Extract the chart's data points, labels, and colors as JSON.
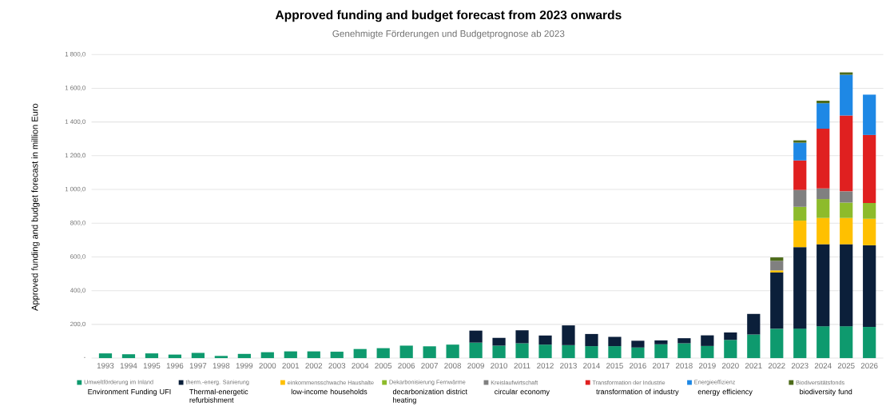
{
  "chart_data": {
    "type": "bar",
    "stacked": true,
    "title": "Approved funding and budget forecast from 2023 onwards",
    "subtitle": "Genehmigte Förderungen und Budgetprognose ab 2023",
    "ylabel": "Approved funding and budget forecast in million Euro",
    "categories": [
      "1993",
      "1994",
      "1995",
      "1996",
      "1997",
      "1998",
      "1999",
      "2000",
      "2001",
      "2002",
      "2003",
      "2004",
      "2005",
      "2006",
      "2007",
      "2008",
      "2009",
      "2010",
      "2011",
      "2012",
      "2013",
      "2014",
      "2015",
      "2016",
      "2017",
      "2018",
      "2019",
      "2020",
      "2021",
      "2022",
      "2023",
      "2024",
      "2025",
      "2026"
    ],
    "series": [
      {
        "name": "Umweltförderung im Inland",
        "color": "#0e9a6e",
        "values": [
          28,
          23,
          28,
          21,
          31,
          13,
          25,
          35,
          40,
          40,
          38,
          54,
          59,
          74,
          70,
          80,
          92,
          74,
          88,
          80,
          77,
          71,
          71,
          63,
          82,
          88,
          72,
          108,
          140,
          174,
          175,
          189,
          189,
          185
        ]
      },
      {
        "name": "therm.-energ. Sanierung",
        "color": "#0b1f3a",
        "values": [
          null,
          null,
          null,
          null,
          null,
          null,
          null,
          null,
          null,
          null,
          null,
          null,
          null,
          null,
          null,
          null,
          71,
          46,
          77,
          54,
          117,
          72,
          55,
          40,
          23,
          30,
          63,
          44,
          122,
          334,
          483,
          486,
          486,
          484
        ]
      },
      {
        "name": "einkommensschwache Haushalte",
        "color": "#ffc000",
        "values": [
          null,
          null,
          null,
          null,
          null,
          null,
          null,
          null,
          null,
          null,
          null,
          null,
          null,
          null,
          null,
          null,
          null,
          null,
          null,
          null,
          null,
          null,
          null,
          null,
          null,
          null,
          null,
          null,
          null,
          12,
          157,
          156,
          156,
          157
        ]
      },
      {
        "name": "Dekarbonisierung Fernwärme",
        "color": "#8dbb2b",
        "values": [
          null,
          null,
          null,
          null,
          null,
          null,
          null,
          null,
          null,
          null,
          null,
          null,
          null,
          null,
          null,
          null,
          null,
          null,
          null,
          null,
          null,
          null,
          null,
          null,
          null,
          null,
          null,
          null,
          null,
          null,
          82,
          112,
          91,
          94
        ]
      },
      {
        "name": "Kreislaufwirtschaft",
        "color": "#808080",
        "values": [
          null,
          null,
          null,
          null,
          null,
          null,
          null,
          null,
          null,
          null,
          null,
          null,
          null,
          null,
          null,
          null,
          null,
          null,
          null,
          null,
          null,
          null,
          null,
          null,
          null,
          null,
          null,
          null,
          null,
          57,
          100,
          63,
          67,
          null
        ]
      },
      {
        "name": "Transformation der Industrie",
        "color": "#e02020",
        "values": [
          null,
          null,
          null,
          null,
          null,
          null,
          null,
          null,
          null,
          null,
          null,
          null,
          null,
          null,
          null,
          null,
          null,
          null,
          null,
          null,
          null,
          null,
          null,
          null,
          null,
          null,
          null,
          null,
          null,
          null,
          175,
          354,
          449,
          403
        ]
      },
      {
        "name": "Energieeffizienz",
        "color": "#1e88e5",
        "values": [
          null,
          null,
          null,
          null,
          null,
          null,
          null,
          null,
          null,
          null,
          null,
          null,
          null,
          null,
          null,
          null,
          null,
          null,
          null,
          null,
          null,
          null,
          null,
          null,
          null,
          null,
          null,
          null,
          null,
          null,
          105,
          151,
          242,
          239
        ]
      },
      {
        "name": "Biodiversitätsfonds",
        "color": "#4d6b1a",
        "values": [
          null,
          null,
          null,
          null,
          null,
          null,
          null,
          null,
          null,
          null,
          null,
          null,
          null,
          null,
          null,
          null,
          null,
          null,
          null,
          null,
          null,
          null,
          null,
          null,
          null,
          null,
          null,
          null,
          null,
          20,
          14,
          15,
          14,
          null
        ]
      }
    ],
    "ylim": [
      0,
      1800
    ],
    "yticks": [
      {
        "value": 0,
        "label": "-"
      },
      {
        "value": 200,
        "label": "200,0"
      },
      {
        "value": 400,
        "label": "400,0"
      },
      {
        "value": 600,
        "label": "600,0"
      },
      {
        "value": 800,
        "label": "800,0"
      },
      {
        "value": 1000,
        "label": "1 000,0"
      },
      {
        "value": 1200,
        "label": "1 200,0"
      },
      {
        "value": 1400,
        "label": "1 400,0"
      },
      {
        "value": 1600,
        "label": "1 600,0"
      },
      {
        "value": 1800,
        "label": "1 800,0"
      }
    ],
    "grid": "y",
    "legend": "bottom",
    "annotations": [
      "Environment Funding UFI",
      "Thermal-energetic refurbishment",
      "low-income households",
      "decarbonization district heating",
      "circular economy",
      "transformation of industry",
      "energy efficiency",
      "biodiversity fund"
    ]
  }
}
